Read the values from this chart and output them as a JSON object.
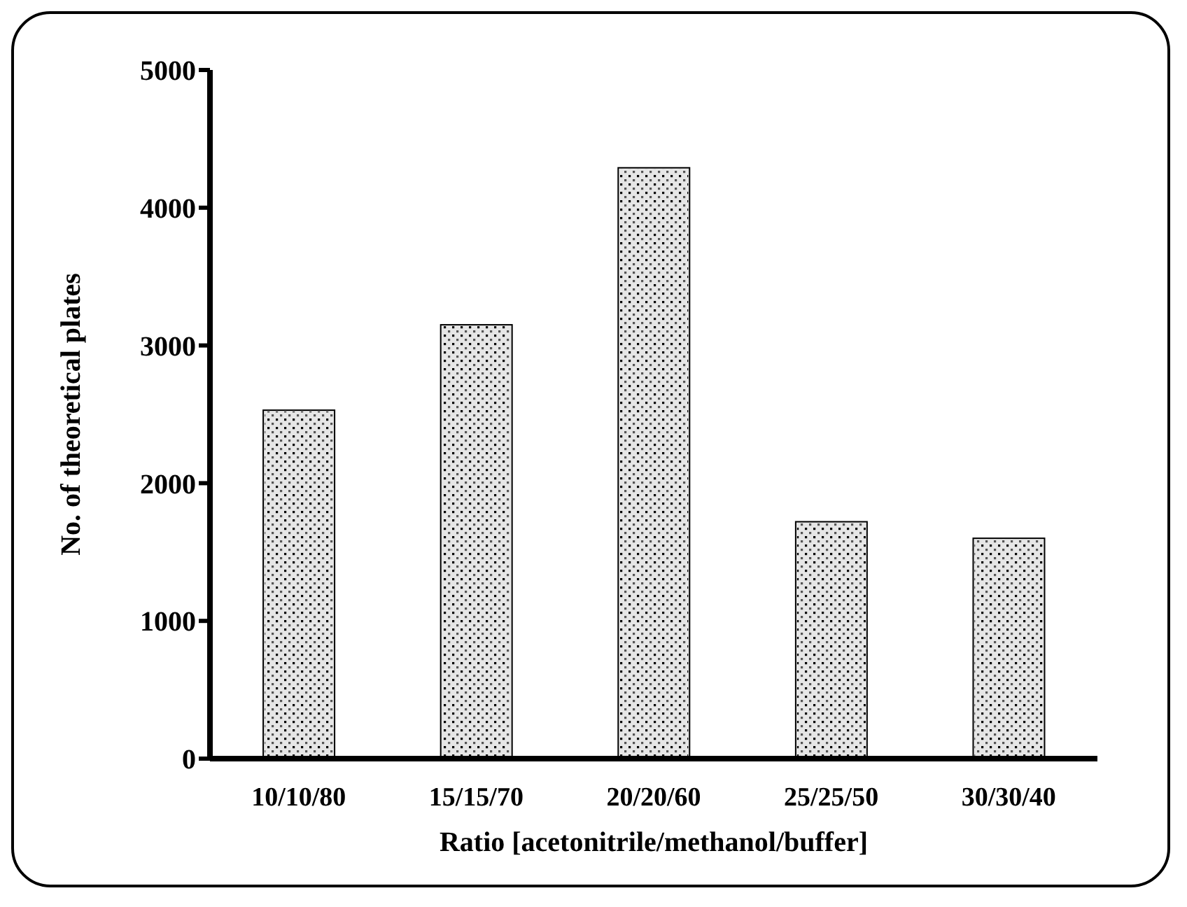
{
  "chart_data": {
    "type": "bar",
    "xlabel": "Ratio [acetonitrile/methanol/buffer]",
    "ylabel": "No. of theoretical plates",
    "categories": [
      "10/10/80",
      "15/15/70",
      "20/20/60",
      "25/25/50",
      "30/30/40"
    ],
    "values": [
      2530,
      3150,
      4290,
      1720,
      1600
    ],
    "color": "#e6e6e6",
    "ylim": [
      0,
      5000
    ],
    "yticks": [
      0,
      1000,
      2000,
      3000,
      4000,
      5000
    ],
    "grid": false
  }
}
